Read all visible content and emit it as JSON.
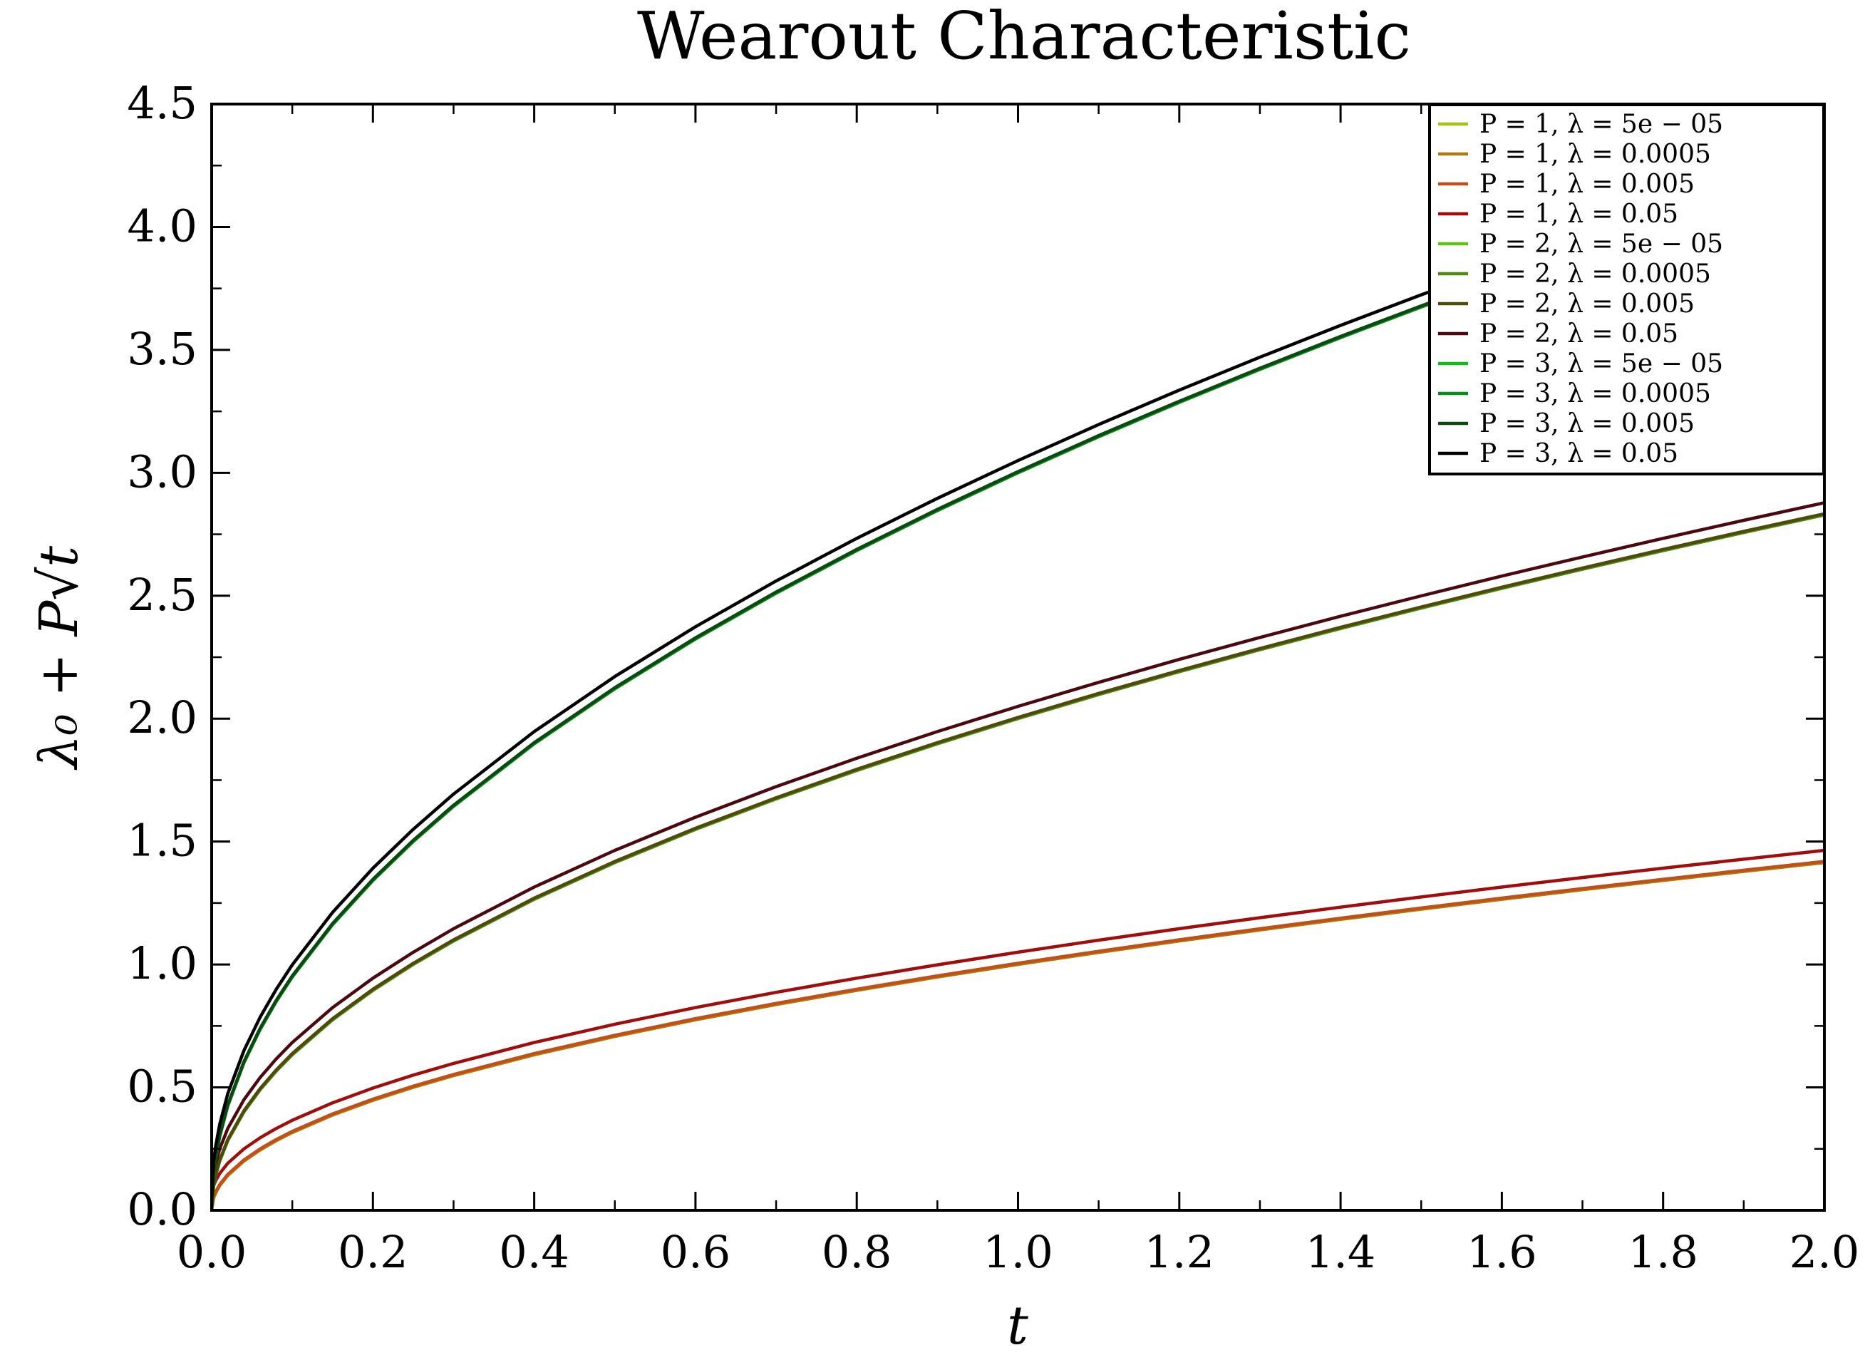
{
  "chart_data": {
    "type": "line",
    "title": "Wearout Characteristic",
    "xlabel": "t",
    "ylabel": "λ₀ + P√t",
    "xlim": [
      0.0,
      2.0
    ],
    "ylim": [
      0.0,
      4.5
    ],
    "x_ticks": [
      0.0,
      0.2,
      0.4,
      0.6,
      0.8,
      1.0,
      1.2,
      1.4,
      1.6,
      1.8,
      2.0
    ],
    "y_ticks": [
      0.0,
      0.5,
      1.0,
      1.5,
      2.0,
      2.5,
      3.0,
      3.5,
      4.0,
      4.5
    ],
    "x_tick_labels": [
      "0.0",
      "0.2",
      "0.4",
      "0.6",
      "0.8",
      "1.0",
      "1.2",
      "1.4",
      "1.6",
      "1.8",
      "2.0"
    ],
    "y_tick_labels": [
      "0.0",
      "0.5",
      "1.0",
      "1.5",
      "2.0",
      "2.5",
      "3.0",
      "3.5",
      "4.0",
      "4.5"
    ],
    "grid": false,
    "legend_position": "top-right",
    "x": [
      0,
      0.0025,
      0.005,
      0.01,
      0.02,
      0.04,
      0.06,
      0.08,
      0.1,
      0.15,
      0.2,
      0.25,
      0.3,
      0.4,
      0.5,
      0.6,
      0.7,
      0.8,
      0.9,
      1.0,
      1.1,
      1.2,
      1.3,
      1.4,
      1.5,
      1.6,
      1.7,
      1.8,
      1.9,
      2.0
    ],
    "series": [
      {
        "name": "P = 1, λ = 5e − 05",
        "P": 1,
        "lambda": 5e-05,
        "color": "#a8c21a"
      },
      {
        "name": "P = 1, λ = 0.0005",
        "P": 1,
        "lambda": 0.0005,
        "color": "#b07a12"
      },
      {
        "name": "P = 1, λ = 0.005",
        "P": 1,
        "lambda": 0.005,
        "color": "#c0501a"
      },
      {
        "name": "P = 1, λ = 0.05",
        "P": 1,
        "lambda": 0.05,
        "color": "#a00d0d"
      },
      {
        "name": "P = 2, λ = 5e − 05",
        "P": 2,
        "lambda": 5e-05,
        "color": "#5ec21a"
      },
      {
        "name": "P = 2, λ = 0.0005",
        "P": 2,
        "lambda": 0.0005,
        "color": "#4e8a16"
      },
      {
        "name": "P = 2, λ = 0.005",
        "P": 2,
        "lambda": 0.005,
        "color": "#4e4a0a"
      },
      {
        "name": "P = 2, λ = 0.05",
        "P": 2,
        "lambda": 0.05,
        "color": "#4a0810"
      },
      {
        "name": "P = 3, λ = 5e − 05",
        "P": 3,
        "lambda": 5e-05,
        "color": "#16b81e"
      },
      {
        "name": "P = 3, λ = 0.0005",
        "P": 3,
        "lambda": 0.0005,
        "color": "#0e8a1c"
      },
      {
        "name": "P = 3, λ = 0.005",
        "P": 3,
        "lambda": 0.005,
        "color": "#0a4a12"
      },
      {
        "name": "P = 3, λ = 0.05",
        "P": 3,
        "lambda": 0.05,
        "color": "#000000"
      }
    ]
  }
}
